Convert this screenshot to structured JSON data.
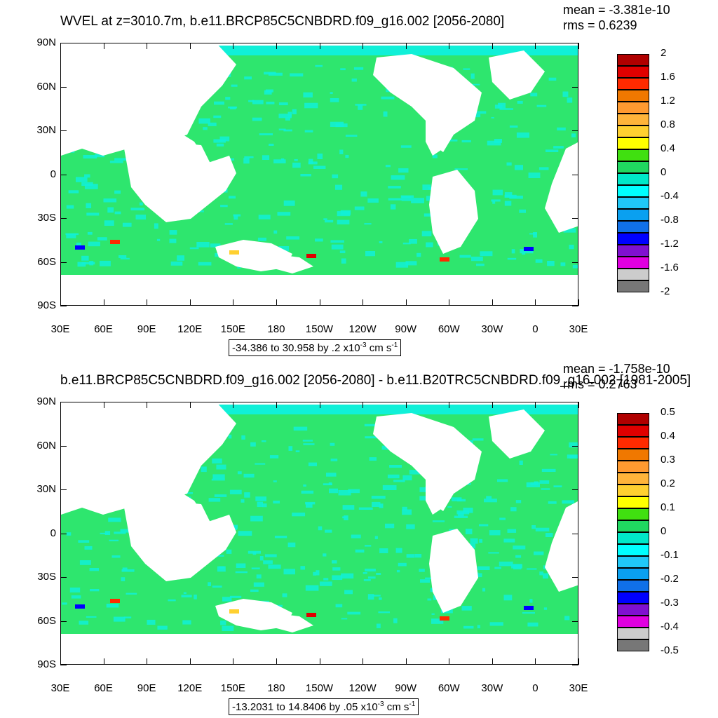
{
  "panels": [
    {
      "title": "WVEL at z=3010.7m, b.e11.BRCP85C5CNBDRD.f09_g16.002 [2056-2080]",
      "mean": "mean = -3.381e-10",
      "rms": "rms = 0.6239",
      "range_text": "-34.386 to 30.958 by .2 x10",
      "range_exp": "-3",
      "range_units": " cm s",
      "range_units_exp": "-1",
      "colorbar_labels": [
        "2",
        "1.6",
        "1.2",
        "0.8",
        "0.4",
        "0",
        "-0.4",
        "-0.8",
        "-1.2",
        "-1.6",
        "-2"
      ]
    },
    {
      "title": "b.e11.BRCP85C5CNBDRD.f09_g16.002 [2056-2080] - b.e11.B20TRC5CNBDRD.f09_g16.002 [1981-2005]",
      "mean": "mean = -1.758e-10",
      "rms": "rms = 0.2763",
      "range_text": "-13.2031 to 14.8406 by .05 x10",
      "range_exp": "-3",
      "range_units": " cm s",
      "range_units_exp": "-1",
      "colorbar_labels": [
        "0.5",
        "0.4",
        "0.3",
        "0.2",
        "0.1",
        "0",
        "-0.1",
        "-0.2",
        "-0.3",
        "-0.4",
        "-0.5"
      ]
    }
  ],
  "y_axis_labels": [
    "90N",
    "60N",
    "30N",
    "0",
    "30S",
    "60S",
    "90S"
  ],
  "x_axis_labels": [
    "30E",
    "60E",
    "90E",
    "120E",
    "150E",
    "180",
    "150W",
    "120W",
    "90W",
    "60W",
    "30W",
    "0",
    "30E"
  ],
  "colorbar_colors": [
    "#b00000",
    "#e00000",
    "#ff2a00",
    "#f07800",
    "#ff9a30",
    "#ffb43a",
    "#ffd030",
    "#ffff00",
    "#40e010",
    "#20d860",
    "#00e8c8",
    "#00ffff",
    "#20c8f8",
    "#0aa0f0",
    "#1070e8",
    "#0000ff",
    "#8010d0",
    "#e000e0",
    "#cccccc",
    "#777777"
  ],
  "map_colors": {
    "ocean_main": "#2ee66e",
    "ocean_alt": "#10f0d8",
    "land": "#ffffff"
  }
}
